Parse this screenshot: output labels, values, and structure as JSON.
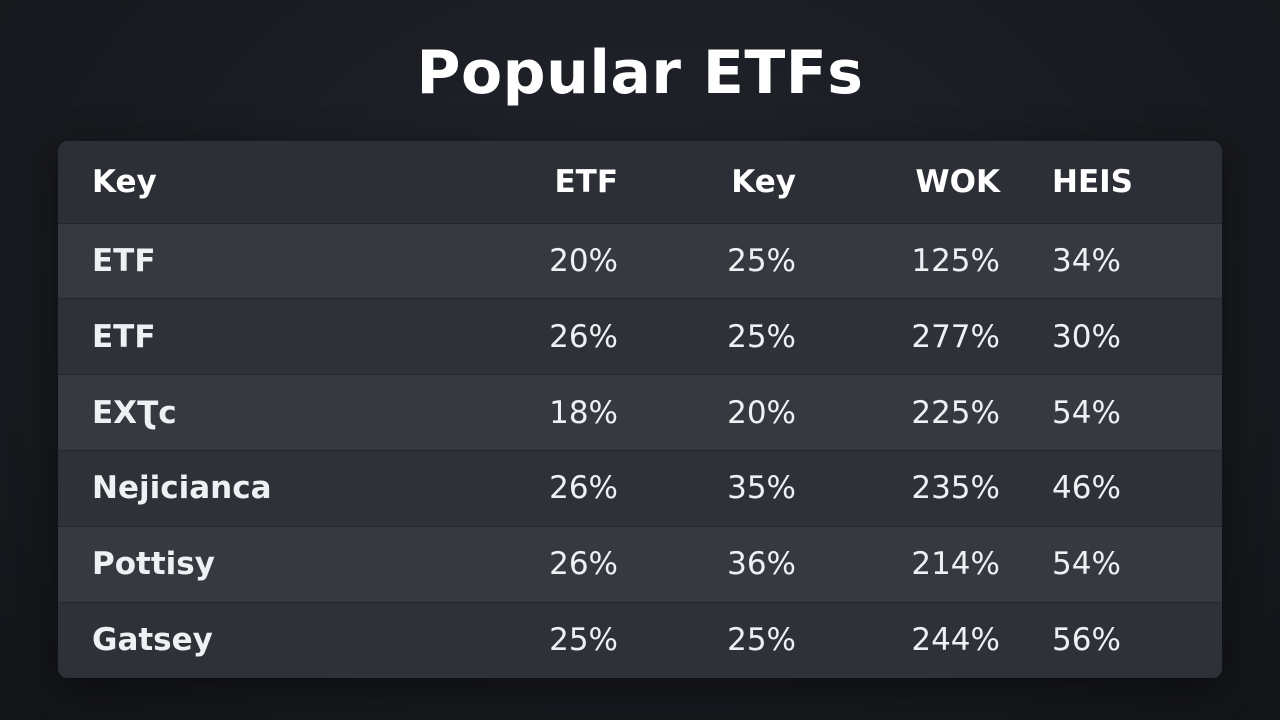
{
  "title": "Popular ETFs",
  "chart_data": {
    "type": "table",
    "title": "Popular ETFs",
    "columns": [
      "Key",
      "ETF",
      "Key",
      "WOK",
      "HEIS"
    ],
    "rows": [
      [
        "ETF",
        "20%",
        "25%",
        "125%",
        "34%"
      ],
      [
        "ETF",
        "26%",
        "25%",
        "277%",
        "30%"
      ],
      [
        "EXƮc",
        "18%",
        "20%",
        "225%",
        "54%"
      ],
      [
        "Nejicianca",
        "26%",
        "35%",
        "235%",
        "46%"
      ],
      [
        "Pottisy",
        "26%",
        "36%",
        "214%",
        "54%"
      ],
      [
        "Gatsey",
        "25%",
        "25%",
        "244%",
        "56%"
      ]
    ]
  }
}
